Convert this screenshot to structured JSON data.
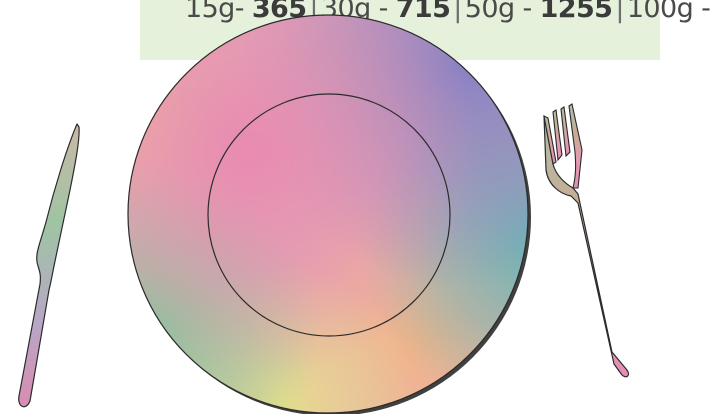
{
  "price_tiers": [
    {
      "weight": "15g",
      "joiner": "- ",
      "price": "365"
    },
    {
      "weight": "30g",
      "joiner": " - ",
      "price": "715"
    },
    {
      "weight": "50g",
      "joiner": " - ",
      "price": "1255"
    },
    {
      "weight": "100g",
      "joiner": " - ",
      "price": ""
    }
  ],
  "colors": {
    "banner_bg": "#e6f1dc",
    "plate_pink": "#e889b0",
    "plate_purple": "#8b86c2",
    "plate_teal": "#6fb7b2",
    "plate_green": "#90c99a",
    "plate_yellow": "#e4db8e",
    "plate_orange": "#f2b48a",
    "outline": "#2b2b2b"
  },
  "icons": [
    "plate-icon",
    "knife-icon",
    "fork-icon"
  ]
}
